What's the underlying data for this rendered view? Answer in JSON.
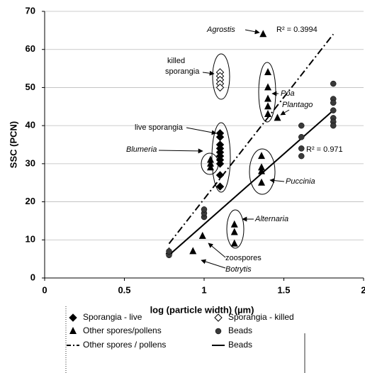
{
  "chart_data": {
    "type": "scatter",
    "x_label": "log (particle width) (µm)",
    "y_label": "SSC (PCN)",
    "xlim": [
      0,
      2
    ],
    "xticks": [
      0,
      0.5,
      1,
      1.5,
      2
    ],
    "ylim": [
      0,
      70
    ],
    "yticks": [
      0,
      10,
      20,
      30,
      40,
      50,
      60,
      70
    ],
    "grid": true,
    "series": [
      {
        "name": "Sporangia - live",
        "marker": "diamond",
        "color": "#000000",
        "x": [
          1.1,
          1.1,
          1.1,
          1.1,
          1.1,
          1.1,
          1.1,
          1.1,
          1.1,
          1.1
        ],
        "values": [
          38,
          37,
          35,
          34,
          33,
          32,
          31,
          30,
          27,
          24
        ]
      },
      {
        "name": "Sporangia - killed",
        "marker": "diamond-open",
        "color": "#000000",
        "x": [
          1.1,
          1.1,
          1.1,
          1.1,
          1.1
        ],
        "values": [
          54,
          53,
          52,
          51,
          50
        ]
      },
      {
        "name": "Other spores/pollens",
        "marker": "triangle",
        "color": "#000000",
        "x": [
          1.37,
          1.4,
          1.4,
          1.4,
          1.4,
          1.4,
          1.46,
          1.04,
          1.04,
          1.04,
          1.36,
          1.36,
          1.36,
          1.36,
          1.19,
          1.19,
          1.19,
          0.99,
          0.93,
          0.78
        ],
        "values": [
          64,
          54,
          50,
          47,
          45,
          43,
          42,
          31,
          30,
          29,
          32,
          29,
          28,
          25,
          14,
          12,
          9,
          11,
          7,
          7
        ]
      },
      {
        "name": "Beads",
        "marker": "circle",
        "color": "#3a3a3a",
        "x": [
          0.78,
          0.78,
          1.0,
          1.0,
          1.0,
          1.61,
          1.61,
          1.61,
          1.61,
          1.81,
          1.81,
          1.81,
          1.81,
          1.81,
          1.81,
          1.81
        ],
        "values": [
          6,
          7,
          16,
          17,
          18,
          40,
          37,
          34,
          32,
          51,
          47,
          46,
          44,
          42,
          41,
          40
        ]
      }
    ],
    "trend_lines": [
      {
        "name": "Other spores / pollens",
        "dash": "dash-dot",
        "color": "#000000",
        "x": [
          0.78,
          1.81
        ],
        "values": [
          9,
          64
        ]
      },
      {
        "name": "Beads",
        "dash": "solid",
        "color": "#000000",
        "x": [
          0.78,
          1.81
        ],
        "values": [
          6,
          44
        ]
      }
    ],
    "annotations": [
      "Agrostis",
      "R² = 0.3994",
      "killed",
      "sporangia",
      "live sporangia",
      "Blumeria",
      "Poa",
      "Plantago",
      "R² = 0.971",
      "Puccinia",
      "Alternaria",
      "zoospores",
      "Botrytis"
    ]
  }
}
